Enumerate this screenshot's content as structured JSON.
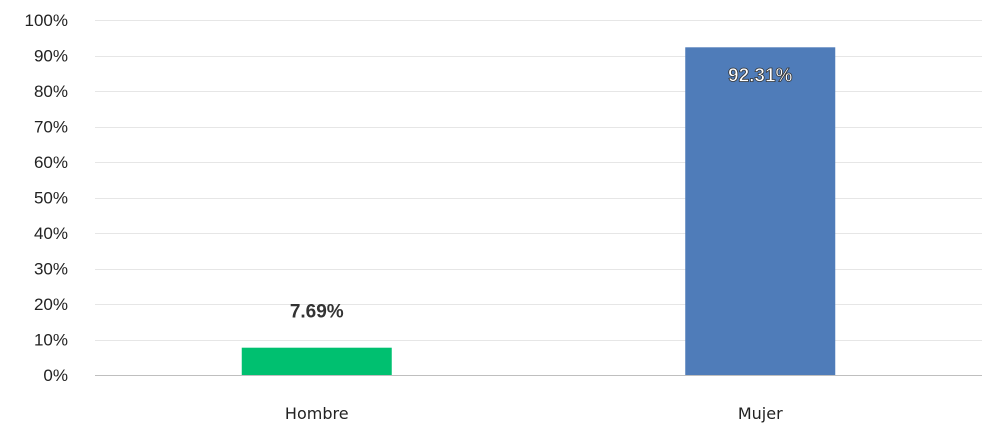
{
  "chart_data": {
    "type": "bar",
    "categories": [
      "Hombre",
      "Mujer"
    ],
    "values": [
      7.69,
      92.31
    ],
    "value_labels": [
      "7.69%",
      "92.31%"
    ],
    "bar_colors": [
      "#00c070",
      "#4f7cb9"
    ],
    "label_color_outside": "#333333",
    "label_color_inside": "#ffffff",
    "ylim": [
      0,
      100
    ],
    "y_ticks": [
      0,
      10,
      20,
      30,
      40,
      50,
      60,
      70,
      80,
      90,
      100
    ],
    "y_tick_labels": [
      "0%",
      "10%",
      "20%",
      "30%",
      "40%",
      "50%",
      "60%",
      "70%",
      "80%",
      "90%",
      "100%"
    ],
    "grid": true,
    "title": "",
    "xlabel": "",
    "ylabel": ""
  }
}
